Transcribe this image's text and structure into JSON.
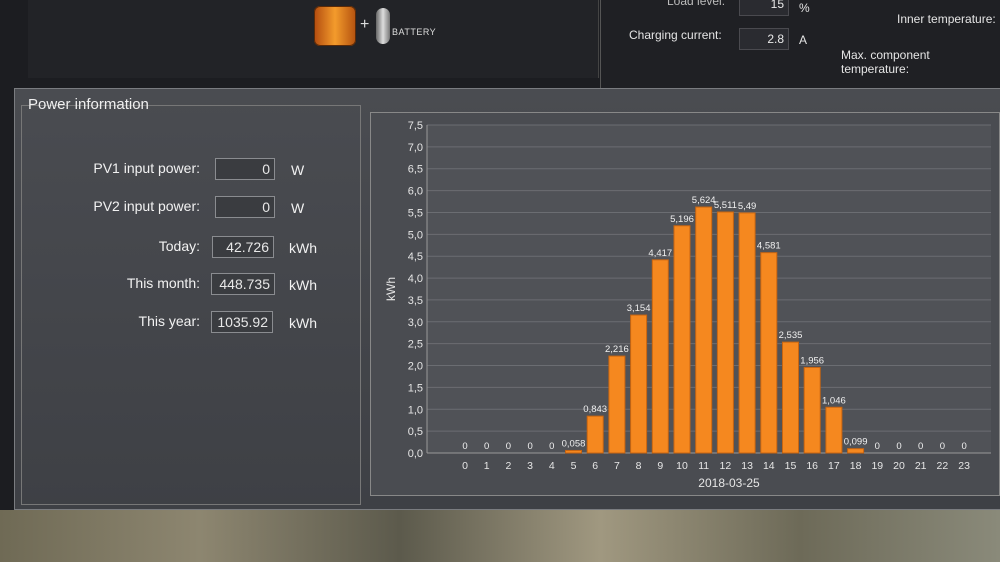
{
  "top_status": {
    "battery_label": "BATTERY",
    "load_level_label": "Load level:",
    "load_level_value": "15",
    "load_level_unit": "%",
    "charging_current_label": "Charging current:",
    "charging_current_value": "2.8",
    "charging_current_unit": "A",
    "inner_temperature_label": "Inner temperature:",
    "max_component_temperature_label": "Max. component temperature:"
  },
  "power_information": {
    "title": "Power information",
    "rows": [
      {
        "label": "PV1 input power:",
        "value": "0",
        "unit": "W"
      },
      {
        "label": "PV2 input power:",
        "value": "0",
        "unit": "W"
      },
      {
        "label": "Today:",
        "value": "42.726",
        "unit": "kWh"
      },
      {
        "label": "This month:",
        "value": "448.735",
        "unit": "kWh"
      },
      {
        "label": "This year:",
        "value": "1035.92",
        "unit": "kWh"
      }
    ]
  },
  "chart_data": {
    "type": "bar",
    "title": "",
    "xlabel": "2018-03-25",
    "ylabel": "kWh",
    "ylim": [
      0,
      7.5
    ],
    "y_ticks": [
      "0,0",
      "0,5",
      "1,0",
      "1,5",
      "2,0",
      "2,5",
      "3,0",
      "3,5",
      "4,0",
      "4,5",
      "5,0",
      "5,5",
      "6,0",
      "6,5",
      "7,0",
      "7,5"
    ],
    "categories": [
      "0",
      "1",
      "2",
      "3",
      "4",
      "5",
      "6",
      "7",
      "8",
      "9",
      "10",
      "11",
      "12",
      "13",
      "14",
      "15",
      "16",
      "17",
      "18",
      "19",
      "20",
      "21",
      "22",
      "23"
    ],
    "values": [
      0,
      0,
      0,
      0,
      0,
      0.058,
      0.843,
      2.216,
      3.154,
      4.417,
      5.196,
      5.624,
      5.511,
      5.49,
      4.581,
      2.535,
      1.956,
      1.046,
      0.099,
      0,
      0,
      0,
      0,
      0
    ],
    "value_labels": [
      "0",
      "0",
      "0",
      "0",
      "0",
      "0,058",
      "0,843",
      "2,216",
      "3,154",
      "4,417",
      "5,196",
      "5,624",
      "5,511",
      "5,49",
      "4,581",
      "2,535",
      "1,956",
      "1,046",
      "0,099",
      "0",
      "0",
      "0",
      "0",
      "0"
    ],
    "bar_color": "#f5881f",
    "grid": true
  }
}
